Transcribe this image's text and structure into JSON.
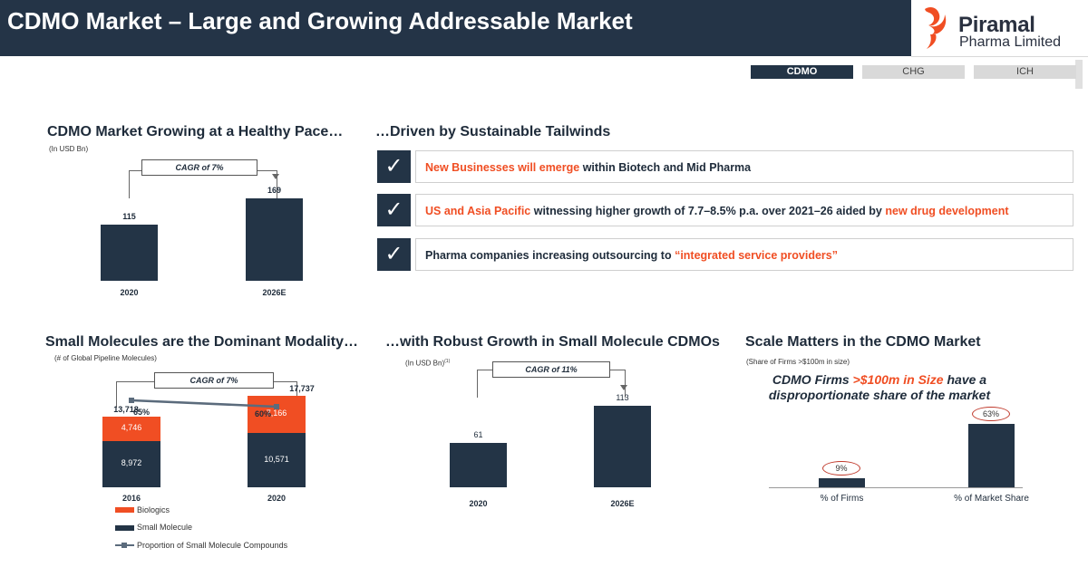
{
  "header": {
    "title": "CDMO Market – Large and Growing Addressable Market",
    "logo_name": "Piramal",
    "logo_sub": "Pharma Limited"
  },
  "tabs": [
    {
      "label": "CDMO",
      "active": true
    },
    {
      "label": "CHG",
      "active": false
    },
    {
      "label": "ICH",
      "active": false
    }
  ],
  "colors": {
    "navy": "#233446",
    "accent": "#f04e23",
    "grey": "#d9d9d9"
  },
  "market": {
    "title": "CDMO Market Growing at a Healthy Pace…",
    "unit": "(In USD Bn)",
    "cagr": "CAGR of 7%"
  },
  "tailwinds": {
    "title": "…Driven by Sustainable Tailwinds",
    "check_icon": "check-icon",
    "rows": [
      {
        "parts": [
          "New Businesses will emerge",
          " within Biotech and Mid Pharma"
        ]
      },
      {
        "parts": [
          "US and Asia Pacific",
          " witnessing higher growth of 7.7–8.5% p.a. over 2021–26 aided by ",
          "new drug development"
        ]
      },
      {
        "parts": [
          "Pharma companies increasing outsourcing to ",
          "“integrated service providers”"
        ]
      }
    ]
  },
  "modality": {
    "title": "Small Molecules are the Dominant Modality…",
    "unit": "(# of Global Pipeline Molecules)",
    "cagr": "CAGR of 7%"
  },
  "small_cdmo": {
    "title": "…with Robust Growth in Small Molecule CDMOs",
    "unit": "(In USD Bn)",
    "unit_sup": "(1)",
    "cagr": "CAGR of 11%"
  },
  "scale": {
    "title": "Scale Matters in the CDMO Market",
    "unit": "(Share of Firms >$100m in size)",
    "head_pre": "CDMO Firms ",
    "head_hl": ">$100m in Size",
    "head_post": " have a",
    "head_line2": "disproportionate share of the market"
  },
  "chart_data": [
    {
      "type": "bar",
      "title": "CDMO Market Growing at a Healthy Pace…",
      "ylabel": "(In USD Bn)",
      "categories": [
        "2020",
        "2026E"
      ],
      "values": [
        115,
        169
      ],
      "labels": [
        "115",
        "169"
      ],
      "ylim": [
        0,
        200
      ]
    },
    {
      "type": "bar",
      "title": "Small Molecules are the Dominant Modality…",
      "stacked": true,
      "categories": [
        "2016",
        "2020"
      ],
      "series": [
        {
          "name": "Small Molecule",
          "values": [
            8972,
            10571
          ],
          "labels": [
            "8,972",
            "10,571"
          ],
          "color": "#233446"
        },
        {
          "name": "Biologics",
          "values": [
            4746,
            7166
          ],
          "labels": [
            "4,746",
            "7,166"
          ],
          "color": "#f04e23"
        }
      ],
      "totals": [
        "13,718",
        "17,737"
      ],
      "line_series": {
        "name": "Proportion of Small Molecule Compounds",
        "values": [
          65,
          60
        ],
        "labels": [
          "65%",
          "60%"
        ]
      },
      "legend": [
        "Biologics",
        "Small Molecule",
        "Proportion of Small Molecule Compounds"
      ],
      "ylim": [
        0,
        20000
      ]
    },
    {
      "type": "bar",
      "title": "…with Robust Growth in Small Molecule CDMOs",
      "categories": [
        "2020",
        "2026E"
      ],
      "values": [
        61,
        113
      ],
      "labels": [
        "61",
        "113"
      ],
      "ylim": [
        0,
        130
      ]
    },
    {
      "type": "bar",
      "title": "Scale Matters in the CDMO Market",
      "categories": [
        "% of Firms",
        "% of Market Share"
      ],
      "values": [
        9,
        63
      ],
      "labels": [
        "9%",
        "63%"
      ],
      "ylim": [
        0,
        70
      ]
    }
  ]
}
